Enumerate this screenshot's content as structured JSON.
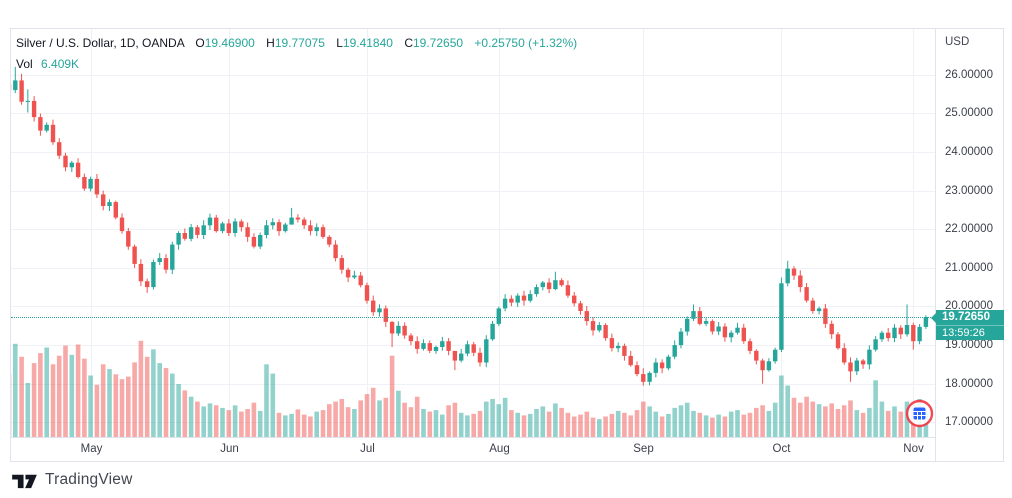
{
  "header": {
    "instrument": "Silver / U.S. Dollar, 1D, OANDA",
    "o_label": "O",
    "o": "19.46900",
    "h_label": "H",
    "h": "19.77075",
    "l_label": "L",
    "l": "19.41840",
    "c_label": "C",
    "c": "19.72650",
    "change": "+0.25750",
    "change_pct": "(+1.32%)",
    "vol_label": "Vol",
    "vol": "6.409K"
  },
  "axis": {
    "currency": "USD",
    "price_labels": [
      "26.00000",
      "25.00000",
      "24.00000",
      "23.00000",
      "22.00000",
      "21.00000",
      "20.00000",
      "19.00000",
      "18.00000",
      "17.00000"
    ]
  },
  "price_marker": {
    "price": "19.72650",
    "countdown": "13:59:26"
  },
  "footer": {
    "brand": "TradingView"
  },
  "colors": {
    "up": "#26a69a",
    "down": "#ef5350",
    "vol_up": "rgba(38,166,154,0.5)",
    "vol_down": "rgba(239,83,80,0.5)",
    "grid": "#eef1f5",
    "border": "#e0e3eb",
    "text_dark": "#131722",
    "text_axis": "#3b3f4a",
    "marker_bg": "#26a69a",
    "event_ring": "#f23645",
    "event_glyph": "#2962ff"
  },
  "chart_data": {
    "type": "candlestick",
    "title": "Silver / U.S. Dollar, 1D, OANDA",
    "currency": "USD",
    "legend_position": "top-left",
    "grid": true,
    "y_ticks": [
      26,
      25,
      24,
      23,
      22,
      21,
      20,
      19,
      18,
      17
    ],
    "ylim_visible": [
      16.6,
      27.2
    ],
    "price_line": 19.7265,
    "x_months": [
      {
        "label": "May",
        "start_index": 13
      },
      {
        "label": "Jun",
        "start_index": 35
      },
      {
        "label": "Jul",
        "start_index": 57
      },
      {
        "label": "Aug",
        "start_index": 78
      },
      {
        "label": "Sep",
        "start_index": 101
      },
      {
        "label": "Oct",
        "start_index": 123
      },
      {
        "label": "Nov",
        "start_index": 144
      }
    ],
    "closes": [
      25.6,
      25.85,
      25.3,
      25.32,
      24.9,
      24.55,
      24.7,
      24.25,
      23.9,
      23.6,
      23.72,
      23.35,
      23.05,
      23.3,
      22.9,
      22.6,
      22.7,
      22.3,
      21.95,
      21.55,
      21.1,
      20.65,
      20.5,
      21.15,
      21.25,
      20.95,
      21.6,
      21.9,
      21.75,
      22.05,
      21.85,
      22.1,
      22.3,
      21.95,
      22.15,
      21.9,
      22.2,
      22.05,
      21.8,
      21.55,
      21.85,
      22.1,
      22.18,
      21.95,
      22.12,
      22.3,
      22.25,
      22.1,
      21.95,
      22.05,
      21.8,
      21.6,
      21.25,
      20.95,
      20.75,
      20.8,
      20.55,
      20.15,
      19.85,
      19.95,
      19.6,
      19.3,
      19.5,
      19.25,
      19.1,
      18.9,
      19.05,
      18.85,
      18.95,
      19.1,
      18.85,
      18.6,
      18.78,
      19.02,
      18.8,
      18.55,
      19.15,
      19.55,
      19.95,
      20.2,
      20.1,
      20.28,
      20.15,
      20.32,
      20.5,
      20.62,
      20.45,
      20.68,
      20.55,
      20.28,
      20.08,
      19.88,
      19.62,
      19.38,
      19.52,
      19.18,
      18.92,
      18.98,
      18.72,
      18.48,
      18.25,
      18.05,
      18.28,
      18.55,
      18.4,
      18.7,
      19.0,
      19.35,
      19.68,
      19.88,
      19.55,
      19.62,
      19.35,
      19.48,
      19.2,
      19.32,
      19.45,
      19.1,
      18.85,
      18.6,
      18.35,
      18.58,
      18.88,
      20.6,
      20.98,
      20.8,
      20.5,
      20.15,
      19.88,
      19.95,
      19.55,
      19.28,
      18.92,
      18.55,
      18.32,
      18.6,
      18.5,
      18.88,
      19.15,
      19.32,
      19.18,
      19.45,
      19.28,
      19.52,
      19.1,
      19.47,
      19.7265
    ],
    "volumes_k": [
      17.0,
      25.0,
      21.5,
      14.5,
      19.8,
      22.5,
      24.0,
      19.5,
      21.8,
      24.5,
      22.0,
      24.8,
      21.0,
      16.5,
      14.0,
      19.5,
      18.2,
      16.8,
      15.5,
      16.2,
      20.0,
      25.8,
      21.5,
      23.5,
      19.8,
      18.5,
      17.0,
      14.2,
      12.5,
      10.8,
      9.5,
      8.2,
      9.0,
      8.5,
      7.8,
      7.2,
      8.5,
      6.8,
      7.5,
      9.2,
      7.0,
      19.5,
      17.0,
      6.5,
      5.8,
      6.2,
      7.4,
      6.0,
      5.5,
      6.8,
      7.2,
      8.8,
      9.5,
      10.2,
      8.0,
      7.5,
      9.8,
      11.5,
      13.2,
      9.8,
      10.5,
      21.8,
      12.4,
      9.2,
      8.0,
      10.8,
      7.5,
      6.8,
      7.2,
      6.0,
      8.5,
      9.2,
      6.5,
      5.8,
      6.2,
      7.0,
      9.5,
      10.2,
      8.8,
      10.5,
      7.2,
      6.5,
      5.8,
      6.2,
      7.5,
      8.2,
      6.8,
      9.0,
      7.8,
      6.5,
      5.5,
      6.0,
      6.8,
      5.2,
      4.8,
      5.5,
      6.2,
      7.0,
      6.5,
      5.8,
      7.2,
      9.5,
      8.2,
      6.8,
      5.5,
      6.2,
      7.8,
      8.5,
      9.2,
      7.0,
      6.5,
      5.8,
      5.2,
      6.0,
      5.5,
      6.8,
      7.2,
      6.0,
      6.5,
      7.8,
      8.5,
      7.0,
      9.2,
      16.5,
      13.8,
      10.5,
      9.2,
      10.8,
      9.5,
      8.8,
      8.2,
      9.0,
      7.5,
      8.5,
      9.8,
      7.2,
      6.5,
      7.8,
      15.2,
      9.5,
      7.0,
      8.2,
      6.8,
      9.5,
      8.5,
      10.2,
      6.409
    ],
    "open_overrides": {
      "0": 25.75,
      "146": 19.469
    },
    "wick_overrides": {
      "0": [
        26.05,
        25.4
      ],
      "1": [
        26.2,
        25.52
      ],
      "2": [
        26.02,
        25.22
      ],
      "3": [
        25.62,
        25.02
      ],
      "22": [
        20.72,
        20.35
      ],
      "45": [
        22.55,
        22.12
      ],
      "61": [
        19.62,
        18.95
      ],
      "71": [
        18.85,
        18.35
      ],
      "87": [
        20.9,
        20.42
      ],
      "101": [
        18.4,
        17.95
      ],
      "109": [
        20.05,
        19.62
      ],
      "120": [
        18.65,
        18.0
      ],
      "123": [
        20.75,
        18.82
      ],
      "124": [
        21.18,
        20.52
      ],
      "134": [
        18.68,
        18.05
      ],
      "143": [
        20.05,
        19.22
      ],
      "144": [
        19.58,
        18.88
      ],
      "146": [
        19.77075,
        19.4184
      ]
    },
    "last_candle": {
      "open": 19.469,
      "high": 19.77075,
      "low": 19.4184,
      "close": 19.7265,
      "volume_k": 6.409
    }
  }
}
